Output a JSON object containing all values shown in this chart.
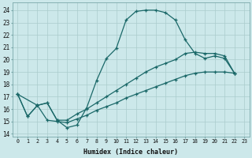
{
  "xlabel": "Humidex (Indice chaleur)",
  "bg_color": "#cce8ea",
  "grid_color": "#aacccc",
  "line_color": "#1a6868",
  "xlim": [
    -0.5,
    23.5
  ],
  "ylim": [
    13.8,
    24.6
  ],
  "yticks": [
    14,
    15,
    16,
    17,
    18,
    19,
    20,
    21,
    22,
    23,
    24
  ],
  "xticks": [
    0,
    1,
    2,
    3,
    4,
    5,
    6,
    7,
    8,
    9,
    10,
    11,
    12,
    13,
    14,
    15,
    16,
    17,
    18,
    19,
    20,
    21,
    22,
    23
  ],
  "line1_x": [
    0,
    1,
    2,
    3,
    4,
    5,
    6,
    7,
    8,
    9,
    10,
    11,
    12,
    13,
    14,
    15,
    16,
    17,
    18,
    19,
    20,
    21,
    22
  ],
  "line1_y": [
    17.2,
    15.4,
    16.3,
    16.5,
    15.1,
    14.5,
    14.7,
    16.1,
    18.3,
    20.1,
    20.9,
    23.2,
    23.9,
    24.0,
    24.0,
    23.8,
    23.2,
    21.6,
    20.5,
    20.1,
    20.3,
    20.1,
    18.9
  ],
  "line2_x": [
    0,
    2,
    3,
    4,
    5,
    6,
    7,
    8,
    9,
    10,
    11,
    12,
    13,
    14,
    15,
    16,
    17,
    18,
    19,
    20,
    21,
    22
  ],
  "line2_y": [
    17.2,
    16.3,
    16.5,
    15.1,
    15.1,
    15.6,
    16.0,
    16.5,
    17.0,
    17.5,
    18.0,
    18.5,
    19.0,
    19.4,
    19.7,
    20.0,
    20.5,
    20.6,
    20.5,
    20.5,
    20.3,
    18.9
  ],
  "line3_x": [
    0,
    1,
    2,
    3,
    4,
    5,
    6,
    7,
    8,
    9,
    10,
    11,
    12,
    13,
    14,
    15,
    16,
    17,
    18,
    19,
    20,
    21,
    22
  ],
  "line3_y": [
    17.2,
    15.4,
    16.3,
    15.1,
    15.0,
    14.9,
    15.2,
    15.5,
    15.9,
    16.2,
    16.5,
    16.9,
    17.2,
    17.5,
    17.8,
    18.1,
    18.4,
    18.7,
    18.9,
    19.0,
    19.0,
    19.0,
    18.9
  ]
}
